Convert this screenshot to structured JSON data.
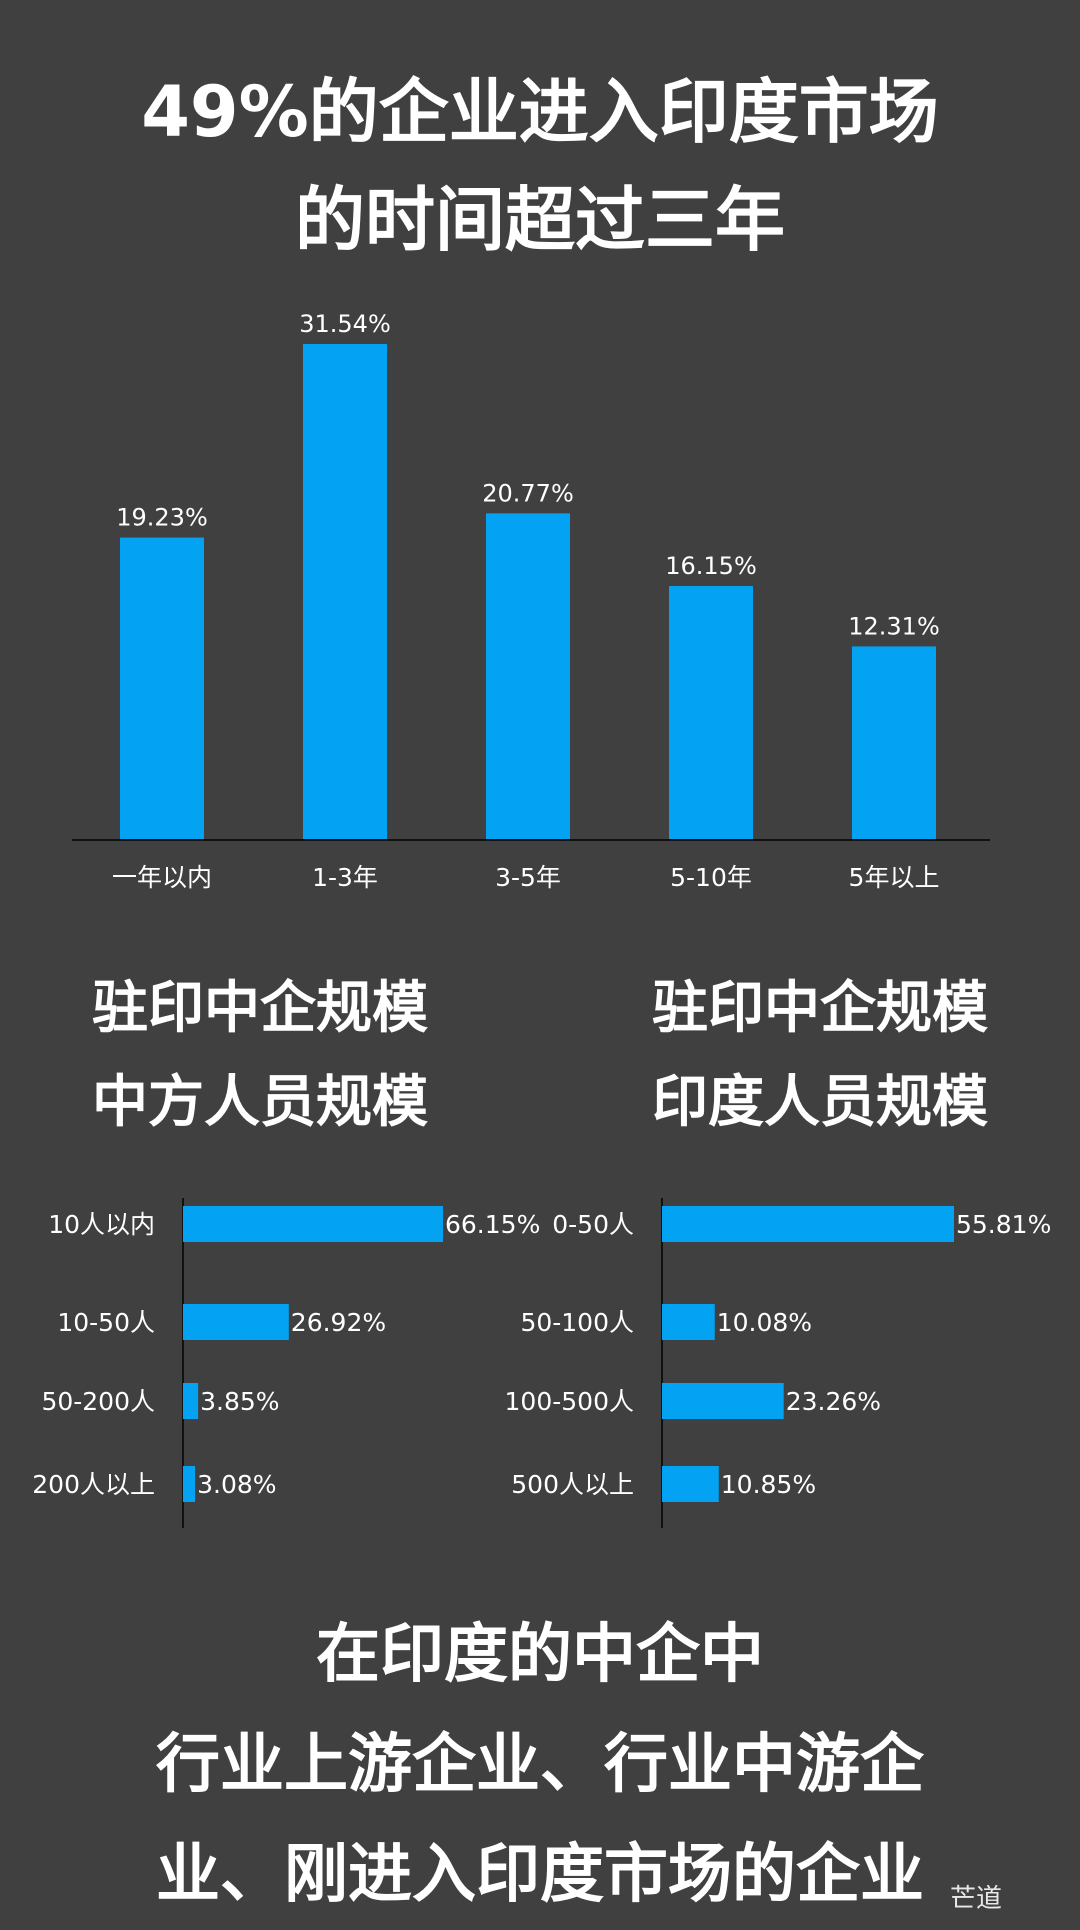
{
  "main_title": [
    "49%的企业进入印度市场",
    "的时间超过三年"
  ],
  "left_title": [
    "驻印中企规模",
    "中方人员规模"
  ],
  "right_title": [
    "驻印中企规模",
    "印度人员规模"
  ],
  "bottom_title": [
    "在印度的中企中",
    "行业上游企业、行业中游企",
    "业、刚进入印度市场的企业"
  ],
  "watermark": "芒道",
  "colors": {
    "bar": "#03a2f3",
    "background": "#404041",
    "axis": "#111111",
    "text": "#ffffff"
  },
  "chart_data": [
    {
      "type": "bar",
      "categories": [
        "一年以内",
        "1-3年",
        "3-5年",
        "5-10年",
        "5年以上"
      ],
      "values": [
        19.23,
        31.54,
        20.77,
        16.15,
        12.31
      ],
      "value_labels": [
        "19.23%",
        "31.54%",
        "20.77%",
        "16.15%",
        "12.31%"
      ],
      "title": "49%的企业进入印度市场的时间超过三年",
      "ylim": [
        0,
        32
      ],
      "grid": false
    },
    {
      "type": "bar",
      "orientation": "horizontal",
      "categories": [
        "10人以内",
        "10-50人",
        "50-200人",
        "200人以上"
      ],
      "values": [
        66.15,
        26.92,
        3.85,
        3.08
      ],
      "value_labels": [
        "66.15%",
        "26.92%",
        "3.85%",
        "3.08%"
      ],
      "title": "驻印中企规模 中方人员规模",
      "xlim": [
        0,
        66.15
      ],
      "grid": false
    },
    {
      "type": "bar",
      "orientation": "horizontal",
      "categories": [
        "0-50人",
        "50-100人",
        "100-500人",
        "500人以上"
      ],
      "values": [
        55.81,
        10.08,
        23.26,
        10.85
      ],
      "value_labels": [
        "55.81%",
        "10.08%",
        "23.26%",
        "10.85%"
      ],
      "title": "驻印中企规模 印度人员规模",
      "xlim": [
        0,
        55.81
      ],
      "grid": false
    }
  ]
}
